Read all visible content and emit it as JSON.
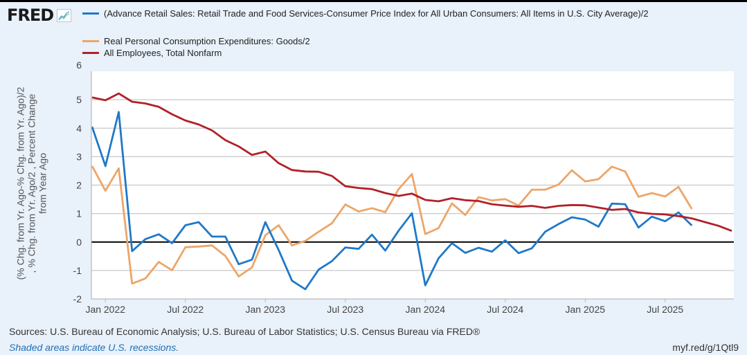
{
  "header": {
    "logo_text": "FRED",
    "logo_icon": "line-chart-icon"
  },
  "legend": [
    {
      "label": "(Advance Retail Sales: Retail Trade and Food Services-Consumer Price Index for All Urban Consumers: All Items in U.S. City Average)/2",
      "color": "#1f78c8"
    },
    {
      "label": "Real Personal Consumption Expenditures: Goods/2",
      "color": "#eda568"
    },
    {
      "label": "All Employees, Total Nonfarm",
      "color": "#b22028"
    }
  ],
  "footer": {
    "sources": "Sources: U.S. Bureau of Economic Analysis; U.S. Bureau of Labor Statistics; U.S. Census Bureau via FRED®",
    "recessions_note": "Shaded areas indicate U.S. recessions.",
    "short_url": "myf.red/g/1Qtl9"
  },
  "chart_data": {
    "type": "line",
    "title": "",
    "xlabel": "",
    "ylabel_lines": [
      "(% Chg. from Yr. Ago-% Chg. from Yr. Ago)/2",
      ", % Chg. from Yr. Ago/2 , Percent Change",
      "from Year Ago"
    ],
    "ylim": [
      -2,
      6
    ],
    "yticks": [
      -2,
      -1,
      0,
      1,
      2,
      3,
      4,
      5,
      6
    ],
    "grid": true,
    "zero_line": true,
    "legend_position": "top",
    "x_start": "Dec 2021",
    "x_end": "Dec 2025",
    "xticks": [
      {
        "label": "Jan 2022",
        "index": 1
      },
      {
        "label": "Jul 2022",
        "index": 7
      },
      {
        "label": "Jan 2023",
        "index": 13
      },
      {
        "label": "Jul 2023",
        "index": 19
      },
      {
        "label": "Jan 2024",
        "index": 25
      },
      {
        "label": "Jul 2024",
        "index": 31
      },
      {
        "label": "Jan 2025",
        "index": 37
      },
      {
        "label": "Jul 2025",
        "index": 43
      }
    ],
    "x": [
      "2021-12",
      "2022-01",
      "2022-02",
      "2022-03",
      "2022-04",
      "2022-05",
      "2022-06",
      "2022-07",
      "2022-08",
      "2022-09",
      "2022-10",
      "2022-11",
      "2022-12",
      "2023-01",
      "2023-02",
      "2023-03",
      "2023-04",
      "2023-05",
      "2023-06",
      "2023-07",
      "2023-08",
      "2023-09",
      "2023-10",
      "2023-11",
      "2023-12",
      "2024-01",
      "2024-02",
      "2024-03",
      "2024-04",
      "2024-05",
      "2024-06",
      "2024-07",
      "2024-08",
      "2024-09",
      "2024-10",
      "2024-11",
      "2024-12",
      "2025-01",
      "2025-02",
      "2025-03",
      "2025-04",
      "2025-05",
      "2025-06",
      "2025-07",
      "2025-08",
      "2025-09",
      "2025-10",
      "2025-11",
      "2025-12"
    ],
    "series": [
      {
        "name": "(Advance Retail Sales: Retail Trade and Food Services-Consumer Price Index for All Urban Consumers: All Items in U.S. City Average)/2",
        "color": "#1f78c8",
        "values": [
          4.05,
          2.67,
          4.57,
          -0.32,
          0.1,
          0.27,
          -0.04,
          0.59,
          0.7,
          0.19,
          0.19,
          -0.78,
          -0.62,
          0.7,
          -0.28,
          -1.36,
          -1.66,
          -0.97,
          -0.67,
          -0.19,
          -0.24,
          0.26,
          -0.3,
          0.4,
          1.01,
          -1.52,
          -0.57,
          -0.04,
          -0.38,
          -0.2,
          -0.34,
          0.06,
          -0.39,
          -0.22,
          0.36,
          0.63,
          0.87,
          0.79,
          0.54,
          1.35,
          1.33,
          0.51,
          0.89,
          0.73,
          1.04,
          0.58
        ]
      },
      {
        "name": "Real Personal Consumption Expenditures: Goods/2",
        "color": "#eda568",
        "values": [
          2.67,
          1.8,
          2.59,
          -1.46,
          -1.28,
          -0.7,
          -0.99,
          -0.18,
          -0.16,
          -0.12,
          -0.49,
          -1.21,
          -0.89,
          0.24,
          0.59,
          -0.12,
          0.04,
          0.36,
          0.66,
          1.32,
          1.07,
          1.19,
          1.05,
          1.86,
          2.39,
          0.28,
          0.49,
          1.36,
          0.95,
          1.58,
          1.46,
          1.51,
          1.28,
          1.84,
          1.84,
          2.02,
          2.52,
          2.13,
          2.21,
          2.65,
          2.48,
          1.59,
          1.72,
          1.6,
          1.94,
          1.16
        ]
      },
      {
        "name": "All Employees, Total Nonfarm",
        "color": "#b22028",
        "values": [
          5.08,
          4.98,
          5.22,
          4.93,
          4.87,
          4.75,
          4.49,
          4.27,
          4.13,
          3.92,
          3.58,
          3.36,
          3.06,
          3.18,
          2.77,
          2.53,
          2.48,
          2.47,
          2.32,
          1.96,
          1.9,
          1.86,
          1.72,
          1.62,
          1.7,
          1.48,
          1.43,
          1.54,
          1.47,
          1.44,
          1.33,
          1.28,
          1.24,
          1.27,
          1.2,
          1.27,
          1.3,
          1.29,
          1.21,
          1.13,
          1.16,
          1.04,
          0.99,
          0.97,
          0.91,
          0.83,
          0.7,
          0.57,
          0.39
        ]
      }
    ]
  }
}
